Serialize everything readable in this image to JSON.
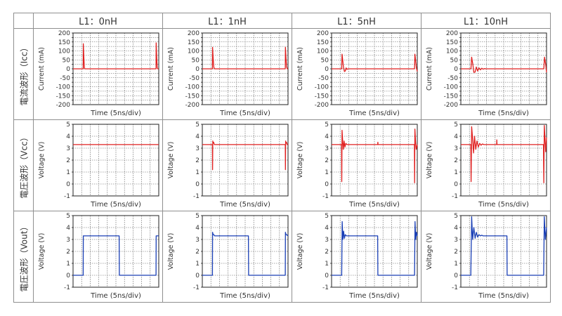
{
  "columns": [
    "L1：0nH",
    "L1：1nH",
    "L1：5nH",
    "L1：10nH"
  ],
  "rows": [
    "電流波形（Icc）",
    "電圧波形（Vcc）",
    "電圧波形（Vout）"
  ],
  "colors": {
    "current": "#e02020",
    "vcc": "#e02020",
    "vout": "#1a3fb5"
  },
  "chart_data": [
    {
      "type": "line",
      "row": 0,
      "column": "L1：0nH",
      "ylabel": "Current (mA)",
      "xlabel": "Time (5ns/div)",
      "ylim": [
        -200,
        200
      ],
      "yticks": [
        -200,
        -175,
        -150,
        -125,
        -100,
        -75,
        -50,
        -25,
        0,
        25,
        50,
        75,
        100,
        125,
        150,
        175,
        200
      ],
      "ytick_labels": [
        "-200",
        "",
        "-150",
        "",
        "-100",
        "",
        "-50",
        "",
        "0",
        "",
        "50",
        "",
        "100",
        "",
        "150",
        "",
        "200"
      ],
      "xlim": [
        0,
        50
      ],
      "series": [
        {
          "x": [
            0,
            5.9,
            6.0,
            6.3,
            6.6,
            6.9,
            48.4,
            48.5,
            48.8,
            49.1,
            49.4,
            50
          ],
          "y": [
            0,
            0,
            140,
            60,
            5,
            0,
            0,
            145,
            60,
            5,
            0,
            0
          ]
        }
      ]
    },
    {
      "type": "line",
      "row": 0,
      "column": "L1：1nH",
      "ylabel": "Current (mA)",
      "xlabel": "Time (5ns/div)",
      "ylim": [
        -200,
        200
      ],
      "yticks": [
        -200,
        -175,
        -150,
        -125,
        -100,
        -75,
        -50,
        -25,
        0,
        25,
        50,
        75,
        100,
        125,
        150,
        175,
        200
      ],
      "ytick_labels": [
        "-200",
        "",
        "-150",
        "",
        "-100",
        "",
        "-50",
        "",
        "0",
        "",
        "50",
        "",
        "100",
        "",
        "150",
        "",
        "200"
      ],
      "xlim": [
        0,
        50
      ],
      "series": [
        {
          "x": [
            0,
            5.9,
            6.0,
            6.3,
            6.7,
            7.1,
            48.4,
            48.5,
            48.8,
            49.2,
            49.6,
            50
          ],
          "y": [
            0,
            0,
            120,
            60,
            10,
            0,
            0,
            120,
            60,
            10,
            0,
            0
          ]
        }
      ]
    },
    {
      "type": "line",
      "row": 0,
      "column": "L1：5nH",
      "ylabel": "Current (mA)",
      "xlabel": "Time (5ns/div)",
      "ylim": [
        -200,
        200
      ],
      "yticks": [
        -200,
        -175,
        -150,
        -125,
        -100,
        -75,
        -50,
        -25,
        0,
        25,
        50,
        75,
        100,
        125,
        150,
        175,
        200
      ],
      "ytick_labels": [
        "-200",
        "",
        "-150",
        "",
        "-100",
        "",
        "-50",
        "",
        "0",
        "",
        "50",
        "",
        "100",
        "",
        "150",
        "",
        "200"
      ],
      "xlim": [
        0,
        50
      ],
      "series": [
        {
          "x": [
            0,
            5.9,
            6.1,
            6.6,
            7.0,
            7.5,
            8.0,
            8.5,
            9.0,
            9.5,
            48.4,
            48.6,
            49.1,
            49.5,
            50
          ],
          "y": [
            0,
            0,
            82,
            40,
            5,
            -15,
            -12,
            5,
            -3,
            0,
            0,
            82,
            40,
            5,
            -15
          ]
        }
      ]
    },
    {
      "type": "line",
      "row": 0,
      "column": "L1：10nH",
      "ylabel": "Current (mA)",
      "xlabel": "Time (5ns/div)",
      "ylim": [
        -200,
        200
      ],
      "yticks": [
        -200,
        -175,
        -150,
        -125,
        -100,
        -75,
        -50,
        -25,
        0,
        25,
        50,
        75,
        100,
        125,
        150,
        175,
        200
      ],
      "ytick_labels": [
        "-200",
        "",
        "-150",
        "",
        "-100",
        "",
        "-50",
        "",
        "0",
        "",
        "50",
        "",
        "100",
        "",
        "150",
        "",
        "200"
      ],
      "xlim": [
        0,
        50
      ],
      "series": [
        {
          "x": [
            0,
            5.9,
            6.3,
            7.0,
            7.6,
            8.3,
            9.0,
            9.8,
            10.6,
            11.4,
            12.2,
            13.0,
            13.8,
            14.6,
            15.4,
            48.4,
            48.8,
            49.5,
            50
          ],
          "y": [
            0,
            0,
            65,
            25,
            -20,
            -18,
            10,
            -12,
            5,
            -6,
            3,
            -2,
            1,
            0,
            0,
            0,
            65,
            25,
            -20
          ]
        }
      ]
    },
    {
      "type": "line",
      "row": 1,
      "column": "L1：0nH",
      "ylabel": "Voltage (V)",
      "xlabel": "Time (5ns/div)",
      "ylim": [
        -1,
        5
      ],
      "yticks": [
        -1,
        0,
        1,
        2,
        3,
        4,
        5
      ],
      "ytick_labels": [
        "-1",
        "0",
        "1",
        "2",
        "3",
        "4",
        "5"
      ],
      "xlim": [
        0,
        50
      ],
      "series": [
        {
          "x": [
            0,
            50
          ],
          "y": [
            3.3,
            3.3
          ]
        }
      ]
    },
    {
      "type": "line",
      "row": 1,
      "column": "L1：1nH",
      "ylabel": "Voltage (V)",
      "xlabel": "Time (5ns/div)",
      "ylim": [
        -1,
        5
      ],
      "yticks": [
        -1,
        0,
        1,
        2,
        3,
        4,
        5
      ],
      "ytick_labels": [
        "-1",
        "0",
        "1",
        "2",
        "3",
        "4",
        "5"
      ],
      "xlim": [
        0,
        50
      ],
      "series": [
        {
          "x": [
            0,
            5.9,
            6.0,
            6.1,
            6.2,
            6.6,
            7.0,
            48.4,
            48.5,
            48.6,
            48.7,
            49.1,
            49.5,
            50
          ],
          "y": [
            3.3,
            3.3,
            1.2,
            3.6,
            3.4,
            3.5,
            3.3,
            3.3,
            1.2,
            3.6,
            3.4,
            3.5,
            3.3,
            3.3
          ]
        }
      ]
    },
    {
      "type": "line",
      "row": 1,
      "column": "L1：5nH",
      "ylabel": "Voltage (V)",
      "xlabel": "Time (5ns/div)",
      "ylim": [
        -1,
        5
      ],
      "yticks": [
        -1,
        0,
        1,
        2,
        3,
        4,
        5
      ],
      "ytick_labels": [
        "-1",
        "0",
        "1",
        "2",
        "3",
        "4",
        "5"
      ],
      "xlim": [
        0,
        50
      ],
      "series": [
        {
          "x": [
            0,
            5.8,
            5.95,
            6.1,
            6.5,
            6.9,
            7.3,
            7.8,
            8.3,
            9.0,
            9.8,
            26.9,
            27.0,
            27.1,
            27.2,
            48.3,
            48.45,
            48.6,
            49.0,
            49.4,
            50
          ],
          "y": [
            3.3,
            3.3,
            0.2,
            4.5,
            3.5,
            2.9,
            3.6,
            3.1,
            3.4,
            3.3,
            3.3,
            3.3,
            3.5,
            3.3,
            3.3,
            3.3,
            0.1,
            4.6,
            3.5,
            2.9,
            3.3
          ]
        }
      ]
    },
    {
      "type": "line",
      "row": 1,
      "column": "L1：10nH",
      "ylabel": "Voltage (V)",
      "xlabel": "Time (5ns/div)",
      "ylim": [
        -1,
        5
      ],
      "yticks": [
        -1,
        0,
        1,
        2,
        3,
        4,
        5
      ],
      "ytick_labels": [
        "-1",
        "0",
        "1",
        "2",
        "3",
        "4",
        "5"
      ],
      "xlim": [
        0,
        50
      ],
      "series": [
        {
          "x": [
            0,
            5.8,
            6.0,
            6.3,
            6.8,
            7.4,
            8.0,
            8.7,
            9.4,
            10.2,
            11.0,
            11.8,
            12.6,
            13.4,
            14.2,
            15.0,
            20.9,
            21.0,
            21.1,
            21.2,
            48.2,
            48.4,
            48.7,
            49.1,
            49.5,
            50
          ],
          "y": [
            3.3,
            3.3,
            0.2,
            4.8,
            3.9,
            2.6,
            4.0,
            2.9,
            3.6,
            3.1,
            3.4,
            3.25,
            3.35,
            3.3,
            3.3,
            3.3,
            3.3,
            3.7,
            3.3,
            3.3,
            3.3,
            0.1,
            4.9,
            3.8,
            2.7,
            3.9
          ]
        }
      ]
    },
    {
      "type": "line",
      "row": 2,
      "column": "L1：0nH",
      "ylabel": "Voltage (V)",
      "xlabel": "Time (5ns/div)",
      "ylim": [
        -1,
        5
      ],
      "yticks": [
        -1,
        0,
        1,
        2,
        3,
        4,
        5
      ],
      "ytick_labels": [
        "-1",
        "0",
        "1",
        "2",
        "3",
        "4",
        "5"
      ],
      "xlim": [
        0,
        50
      ],
      "series": [
        {
          "x": [
            0,
            5.9,
            6.0,
            26.9,
            27.0,
            48.4,
            48.5,
            50
          ],
          "y": [
            0,
            0,
            3.3,
            3.3,
            0,
            0,
            3.3,
            3.3
          ]
        }
      ]
    },
    {
      "type": "line",
      "row": 2,
      "column": "L1：1nH",
      "ylabel": "Voltage (V)",
      "xlabel": "Time (5ns/div)",
      "ylim": [
        -1,
        5
      ],
      "yticks": [
        -1,
        0,
        1,
        2,
        3,
        4,
        5
      ],
      "ytick_labels": [
        "-1",
        "0",
        "1",
        "2",
        "3",
        "4",
        "5"
      ],
      "xlim": [
        0,
        50
      ],
      "series": [
        {
          "x": [
            0,
            5.9,
            6.0,
            6.3,
            6.7,
            7.2,
            26.9,
            27.0,
            48.4,
            48.5,
            48.8,
            49.2,
            50
          ],
          "y": [
            0,
            0,
            3.6,
            3.4,
            3.4,
            3.3,
            3.3,
            0,
            0,
            3.6,
            3.4,
            3.4,
            3.3
          ]
        }
      ]
    },
    {
      "type": "line",
      "row": 2,
      "column": "L1：5nH",
      "ylabel": "Voltage (V)",
      "xlabel": "Time (5ns/div)",
      "ylim": [
        -1,
        5
      ],
      "yticks": [
        -1,
        0,
        1,
        2,
        3,
        4,
        5
      ],
      "ytick_labels": [
        "-1",
        "0",
        "1",
        "2",
        "3",
        "4",
        "5"
      ],
      "xlim": [
        0,
        50
      ],
      "series": [
        {
          "x": [
            0,
            5.9,
            6.2,
            6.6,
            7.0,
            7.5,
            8.0,
            8.7,
            9.5,
            26.9,
            27.0,
            48.4,
            48.7,
            49.1,
            49.5,
            50
          ],
          "y": [
            0,
            0,
            4.5,
            3.0,
            3.7,
            3.1,
            3.4,
            3.3,
            3.3,
            3.3,
            0,
            0,
            4.5,
            3.0,
            3.6,
            3.3
          ]
        }
      ]
    },
    {
      "type": "line",
      "row": 2,
      "column": "L1：10nH",
      "ylabel": "Voltage (V)",
      "xlabel": "Time (5ns/div)",
      "ylim": [
        -1,
        5
      ],
      "yticks": [
        -1,
        0,
        1,
        2,
        3,
        4,
        5
      ],
      "ytick_labels": [
        "-1",
        "0",
        "1",
        "2",
        "3",
        "4",
        "5"
      ],
      "xlim": [
        0,
        50
      ],
      "series": [
        {
          "x": [
            0,
            5.8,
            6.3,
            6.9,
            7.6,
            8.3,
            9.0,
            9.8,
            10.6,
            11.4,
            12.2,
            13.0,
            26.9,
            27.0,
            48.3,
            48.7,
            49.3,
            50
          ],
          "y": [
            0,
            0,
            4.9,
            3.0,
            4.0,
            3.1,
            3.6,
            3.2,
            3.4,
            3.3,
            3.35,
            3.3,
            3.3,
            0,
            0,
            4.9,
            3.0,
            4.0
          ]
        }
      ]
    }
  ]
}
